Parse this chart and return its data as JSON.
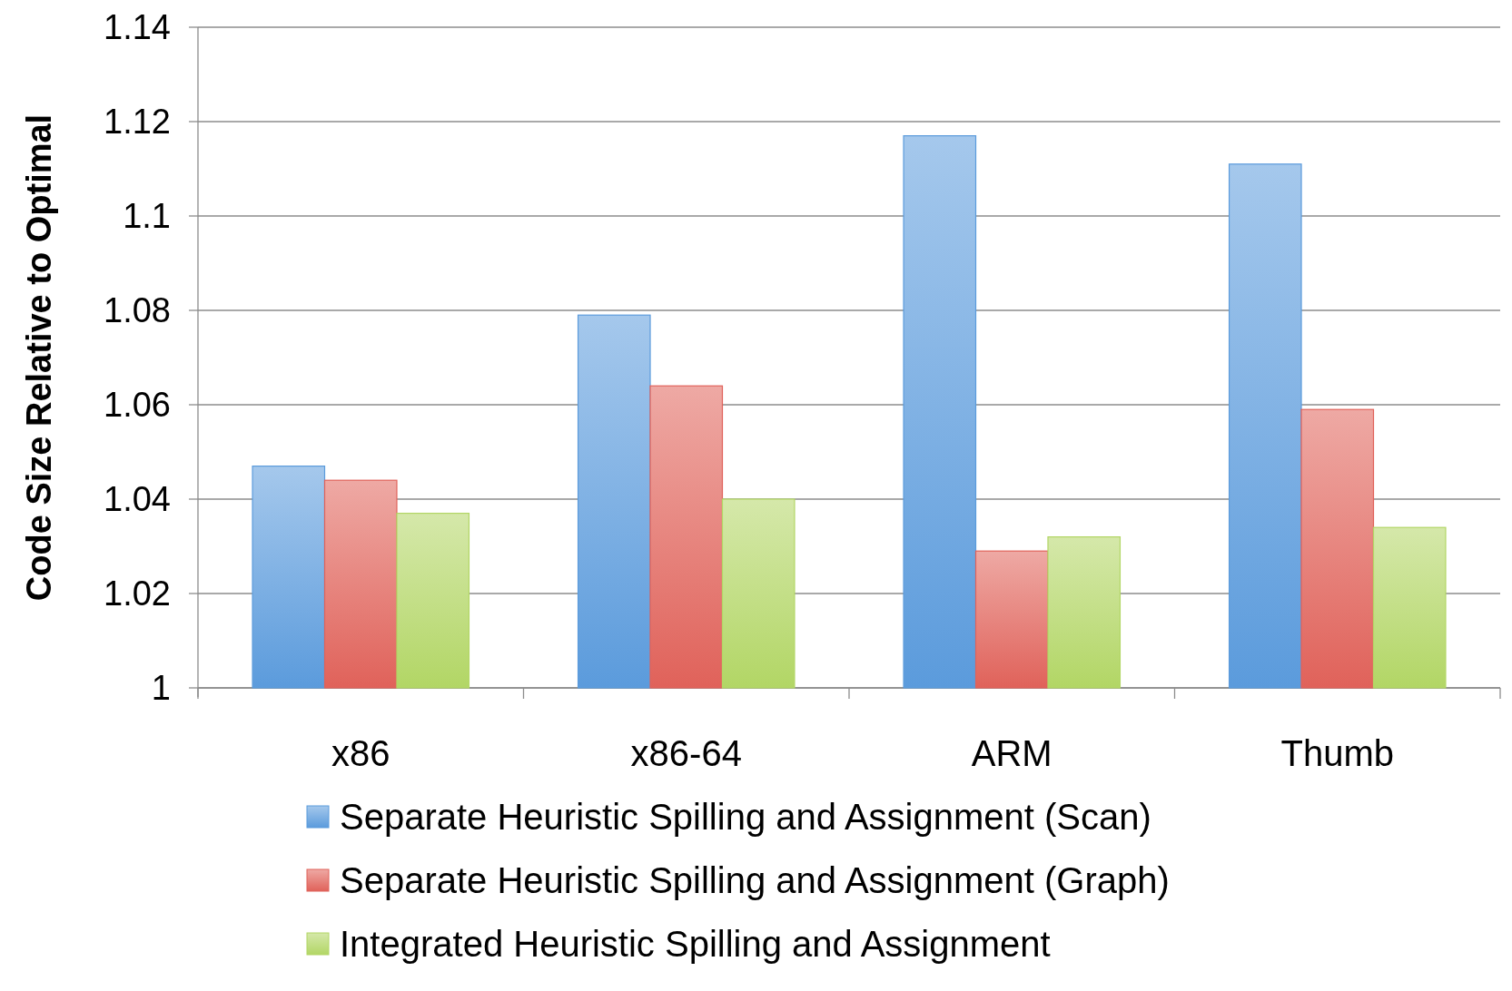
{
  "chart_data": {
    "type": "bar",
    "ylabel": "Code Size Relative to Optimal",
    "categories": [
      "x86",
      "x86-64",
      "ARM",
      "Thumb"
    ],
    "series": [
      {
        "name": "Separate Heuristic Spilling and Assignment (Scan)",
        "color": "#5b9bdc",
        "values": [
          1.047,
          1.079,
          1.117,
          1.111
        ]
      },
      {
        "name": "Separate Heuristic Spilling and Assignment (Graph)",
        "color": "#e0625a",
        "values": [
          1.044,
          1.064,
          1.029,
          1.059
        ]
      },
      {
        "name": "Integrated Heuristic Spilling and Assignment",
        "color": "#b2d665",
        "values": [
          1.037,
          1.04,
          1.032,
          1.034
        ]
      }
    ],
    "ylim": [
      1,
      1.14
    ],
    "yticks": [
      1,
      1.02,
      1.04,
      1.06,
      1.08,
      1.1,
      1.12,
      1.14
    ],
    "grid": "y",
    "legend": "bottom"
  }
}
